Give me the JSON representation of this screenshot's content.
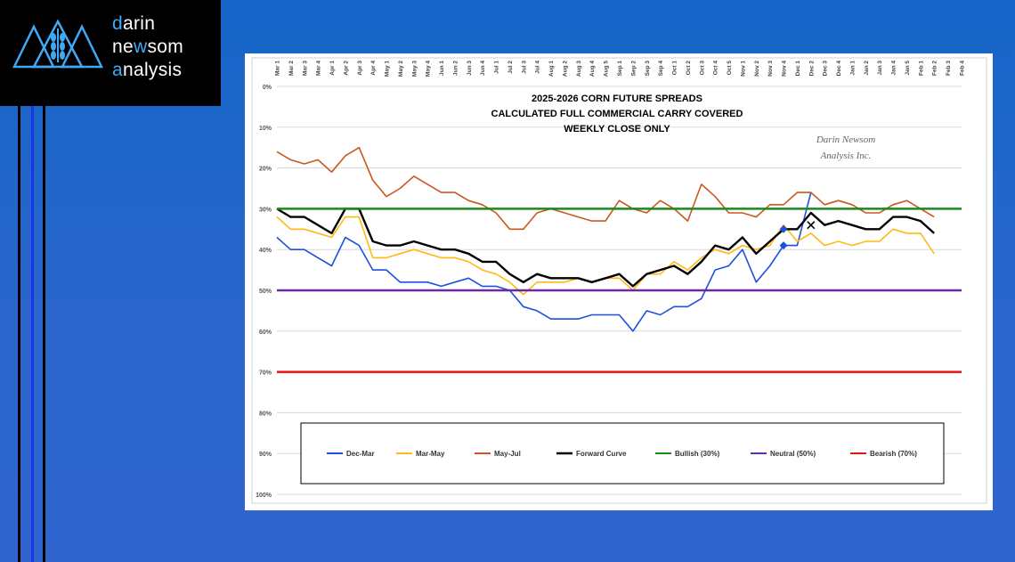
{
  "logo": {
    "line1": "darin",
    "line2": "newsom",
    "line3": "analysis"
  },
  "chart_data": {
    "type": "line",
    "title": "2025-2026 CORN FUTURE SPREADS",
    "subtitle": "CALCULATED FULL COMMERCIAL CARRY COVERED",
    "subtitle2": "WEEKLY CLOSE ONLY",
    "watermark": [
      "Darin Newsom",
      "Analysis Inc."
    ],
    "x": [
      "Mar 1",
      "Mar 2",
      "Mar 3",
      "Mar 4",
      "Apr 1",
      "Apr 2",
      "Apr 3",
      "Apr 4",
      "May 1",
      "May 2",
      "May 3",
      "May 4",
      "Jun 1",
      "Jun 2",
      "Jun 3",
      "Jun 4",
      "Jul 1",
      "Jul 2",
      "Jul 3",
      "Jul 4",
      "Aug 1",
      "Aug 2",
      "Aug 3",
      "Aug 4",
      "Aug 5",
      "Sep 1",
      "Sep 2",
      "Sep 3",
      "Sep 4",
      "Oct 1",
      "Oct 2",
      "Oct 3",
      "Oct 4",
      "Oct 5",
      "Nov 1",
      "Nov 2",
      "Nov 3",
      "Nov 4",
      "Dec 1",
      "Dec 2",
      "Dec 3",
      "Dec 4",
      "Jan 1",
      "Jan 2",
      "Jan 3",
      "Jan 4",
      "Jan 5",
      "Feb 1",
      "Feb 2",
      "Feb 3",
      "Feb 4"
    ],
    "y_ticks": [
      "0%",
      "10%",
      "20%",
      "30%",
      "40%",
      "50%",
      "60%",
      "70%",
      "80%",
      "90%",
      "100%"
    ],
    "ylim": [
      0,
      100
    ],
    "y_inverted": true,
    "grid": true,
    "legend_position": "bottom",
    "series": [
      {
        "name": "Dec-Mar",
        "color": "#1f4fe0",
        "values": [
          37,
          40,
          40,
          42,
          44,
          37,
          39,
          45,
          45,
          48,
          48,
          48,
          49,
          48,
          47,
          49,
          49,
          50,
          54,
          55,
          57,
          57,
          57,
          56,
          56,
          56,
          60,
          55,
          56,
          54,
          54,
          52,
          45,
          44,
          40,
          48,
          44,
          39,
          39,
          26,
          null,
          null,
          null,
          null,
          null,
          null,
          null,
          null,
          null,
          null,
          null
        ]
      },
      {
        "name": "Mar-May",
        "color": "#ffb914",
        "values": [
          32,
          35,
          35,
          36,
          37,
          32,
          32,
          42,
          42,
          41,
          40,
          41,
          42,
          42,
          43,
          45,
          46,
          48,
          51,
          48,
          48,
          48,
          47,
          48,
          47,
          47,
          50,
          46,
          46,
          43,
          45,
          42,
          40,
          41,
          39,
          40,
          39,
          34,
          38,
          36,
          39,
          38,
          39,
          38,
          38,
          35,
          36,
          36,
          41,
          null,
          null
        ]
      },
      {
        "name": "May-Jul",
        "color": "#c8581e",
        "values": [
          16,
          18,
          19,
          18,
          21,
          17,
          15,
          23,
          27,
          25,
          22,
          24,
          26,
          26,
          28,
          29,
          31,
          35,
          35,
          31,
          30,
          31,
          32,
          33,
          33,
          28,
          30,
          31,
          28,
          30,
          33,
          24,
          27,
          31,
          31,
          32,
          29,
          29,
          26,
          26,
          29,
          28,
          29,
          31,
          31,
          29,
          28,
          30,
          32,
          null,
          null
        ]
      },
      {
        "name": "Forward Curve",
        "color": "#000000",
        "values": [
          30,
          32,
          32,
          34,
          36,
          30,
          30,
          38,
          39,
          39,
          38,
          39,
          40,
          40,
          41,
          43,
          43,
          46,
          48,
          46,
          47,
          47,
          47,
          48,
          47,
          46,
          49,
          46,
          45,
          44,
          46,
          43,
          39,
          40,
          37,
          41,
          38,
          35,
          35,
          31,
          34,
          33,
          34,
          35,
          35,
          32,
          32,
          33,
          36,
          null,
          null
        ]
      },
      {
        "name": "Bullish (30%)",
        "color": "#1a8a1a",
        "constant": 30
      },
      {
        "name": "Neutral (50%)",
        "color": "#6a2aa8",
        "constant": 50
      },
      {
        "name": "Bearish (70%)",
        "color": "#ee1111",
        "constant": 70
      }
    ],
    "markers": [
      {
        "x": "Nov 4",
        "y": 35,
        "shape": "diamond",
        "color": "#1f4fe0"
      },
      {
        "x": "Nov 4",
        "y": 39,
        "shape": "diamond",
        "color": "#1f4fe0"
      },
      {
        "x": "Dec 2",
        "y": 34,
        "shape": "x",
        "color": "#000000"
      }
    ]
  }
}
